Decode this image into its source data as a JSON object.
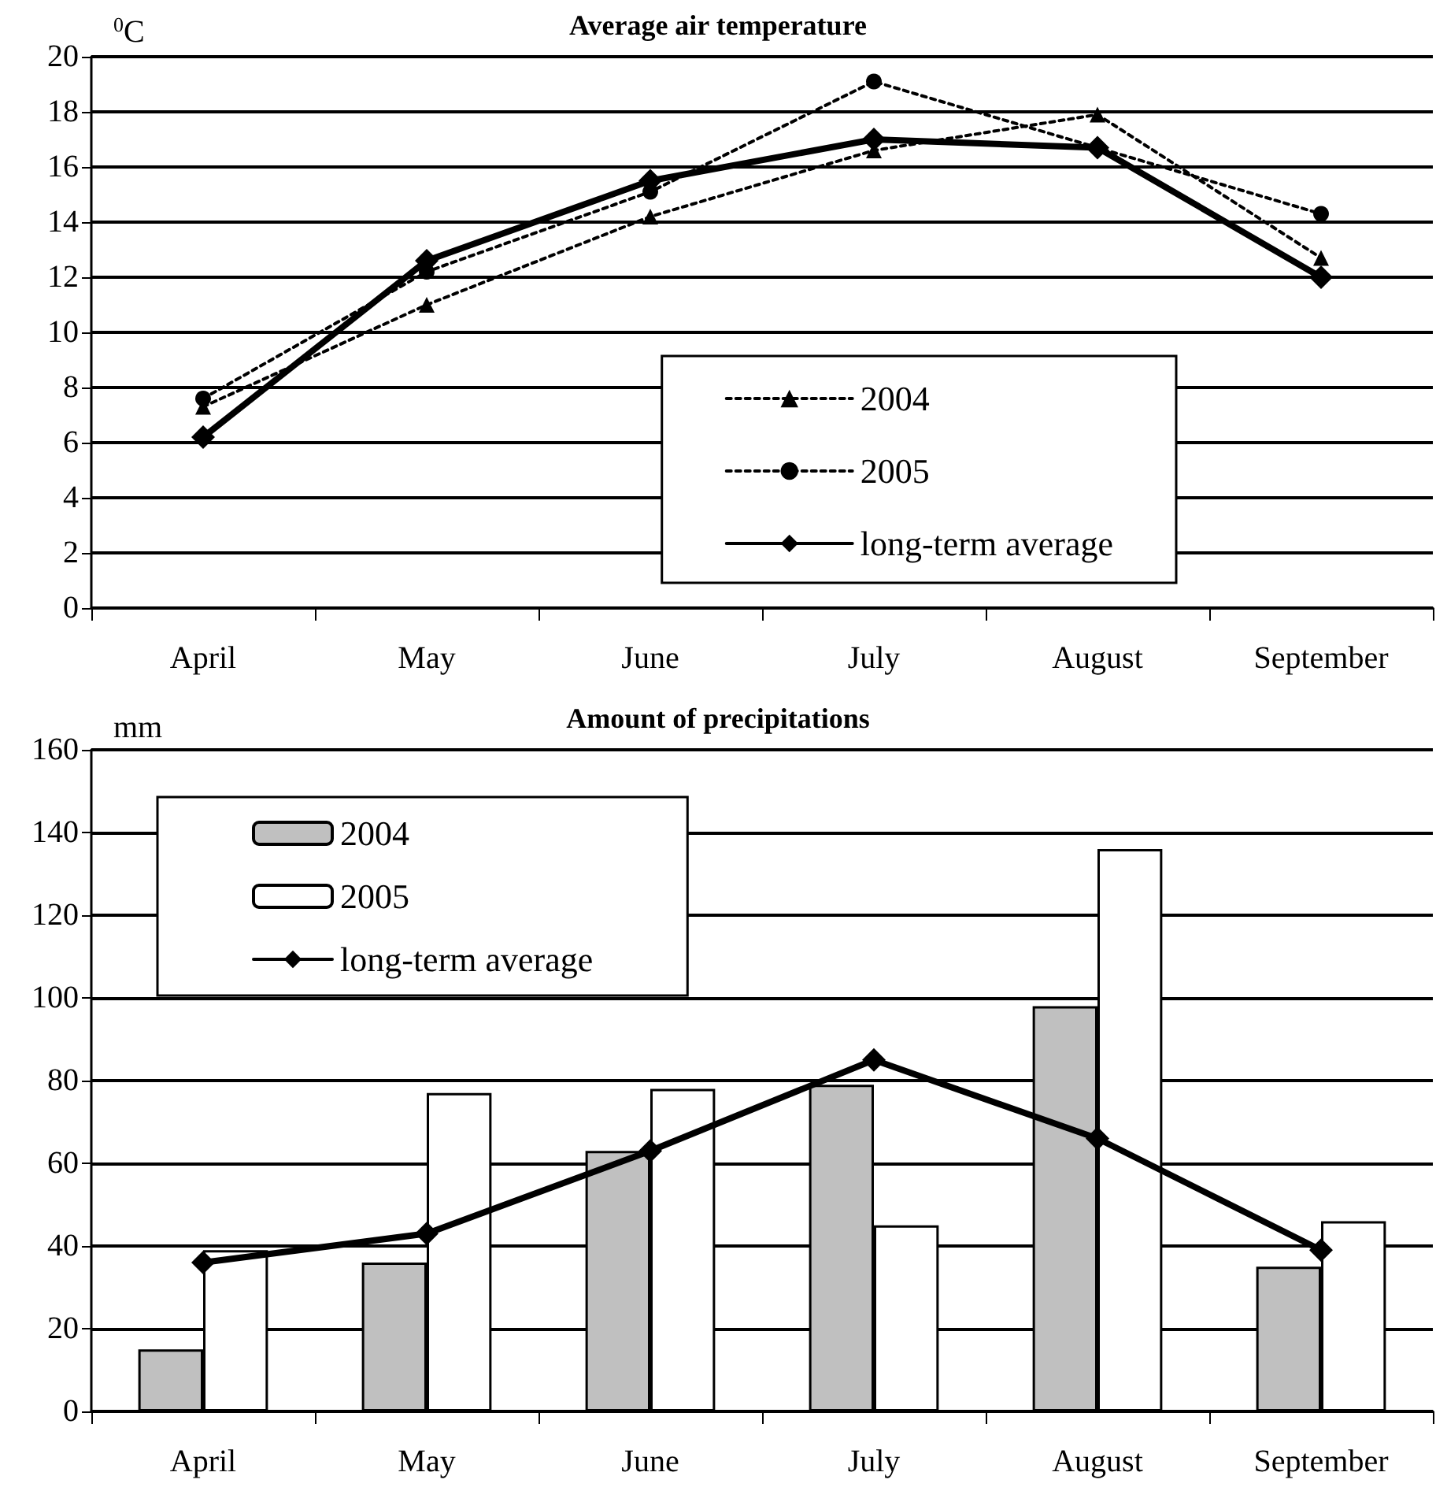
{
  "chart_data": [
    {
      "type": "line",
      "title": "Average air temperature",
      "ylabel": "$^{0}$C",
      "categories": [
        "April",
        "May",
        "June",
        "July",
        "August",
        "September"
      ],
      "series": [
        {
          "name": "2004",
          "color": "#000000",
          "marker": "triangle",
          "line_style": "dotted",
          "values": [
            7.3,
            11.0,
            14.2,
            16.6,
            17.9,
            12.7
          ]
        },
        {
          "name": "2005",
          "color": "#000000",
          "marker": "circle",
          "line_style": "dotted",
          "values": [
            7.6,
            12.2,
            15.1,
            19.1,
            16.7,
            14.3
          ]
        },
        {
          "name": "long-term average",
          "color": "#000000",
          "marker": "diamond",
          "line_style": "solid",
          "values": [
            6.2,
            12.6,
            15.5,
            17.0,
            16.7,
            12.0
          ]
        }
      ],
      "ylim": [
        0,
        20
      ],
      "yticks": [
        0,
        2,
        4,
        6,
        8,
        10,
        12,
        14,
        16,
        18,
        20
      ],
      "grid": "y",
      "legend": "bottom right"
    },
    {
      "type": "bar",
      "title": "Amount of precipitations",
      "ylabel": "mm",
      "categories": [
        "April",
        "May",
        "June",
        "July",
        "August",
        "September"
      ],
      "series": [
        {
          "name": "2004",
          "color": "#c0c0c0",
          "values": [
            15,
            36,
            63,
            79,
            98,
            35
          ]
        },
        {
          "name": "2005",
          "color": "#ffffff",
          "values": [
            39,
            77,
            78,
            45,
            136,
            46
          ]
        },
        {
          "name": "long-term average",
          "type": "line",
          "color": "#000000",
          "marker": "diamond",
          "line_style": "solid",
          "values": [
            36,
            43,
            63,
            85,
            66,
            39
          ]
        }
      ],
      "ylim": [
        0,
        160
      ],
      "yticks": [
        0,
        20,
        40,
        60,
        80,
        100,
        120,
        140,
        160
      ],
      "grid": "y",
      "legend": "top left"
    }
  ]
}
